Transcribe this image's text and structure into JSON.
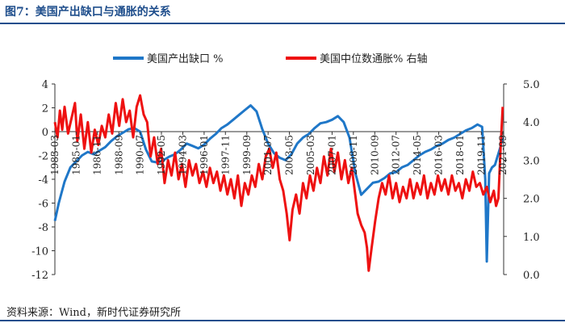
{
  "page": {
    "title": "图7：美国产出缺口与通胀的关系",
    "source": "资料来源：Wind，新时代证券研究所"
  },
  "chart_data": {
    "type": "line",
    "title": "美国产出缺口与通胀的关系",
    "legend": [
      "美国产出缺口 %",
      "美国中位数通胀% 右轴"
    ],
    "legend_position": "top",
    "colors": {
      "gap": "#1f77c8",
      "inflation": "#ee1111",
      "axis": "#333333",
      "title": "#1f4e8c"
    },
    "y_left": {
      "min": -12,
      "max": 4,
      "ticks": [
        "4",
        "2",
        "0",
        "-2",
        "-4",
        "-6",
        "-8",
        "-10",
        "-12"
      ]
    },
    "y_right": {
      "min": 0,
      "max": 5,
      "ticks": [
        "5.0",
        "4.0",
        "3.0",
        "2.0",
        "1.0",
        "0.0"
      ]
    },
    "x_range": [
      1983.17,
      2021.75
    ],
    "x_ticks": [
      {
        "label": "1983-03",
        "year": 1983.17
      },
      {
        "label": "1985-01",
        "year": 1985.0
      },
      {
        "label": "1986-11",
        "year": 1986.83
      },
      {
        "label": "1988-09",
        "year": 1988.67
      },
      {
        "label": "1990-07",
        "year": 1990.5
      },
      {
        "label": "1992-05",
        "year": 1992.33
      },
      {
        "label": "1994-03",
        "year": 1994.17
      },
      {
        "label": "1996-01",
        "year": 1996.0
      },
      {
        "label": "1997-11",
        "year": 1997.83
      },
      {
        "label": "1999-09",
        "year": 1999.67
      },
      {
        "label": "2001-07",
        "year": 2001.5
      },
      {
        "label": "2003-05",
        "year": 2003.33
      },
      {
        "label": "2005-03",
        "year": 2005.17
      },
      {
        "label": "2007-01",
        "year": 2007.0
      },
      {
        "label": "2008-11",
        "year": 2008.83
      },
      {
        "label": "2010-09",
        "year": 2010.67
      },
      {
        "label": "2012-07",
        "year": 2012.5
      },
      {
        "label": "2014-05",
        "year": 2014.33
      },
      {
        "label": "2016-03",
        "year": 2016.17
      },
      {
        "label": "2018-01",
        "year": 2018.0
      },
      {
        "label": "2019-11",
        "year": 2019.83
      },
      {
        "label": "2021-09",
        "year": 2021.67
      }
    ],
    "series": [
      {
        "name": "美国产出缺口 %",
        "axis": "left",
        "points": [
          [
            1983.17,
            -7.5
          ],
          [
            1983.5,
            -6.0
          ],
          [
            1984.0,
            -4.2
          ],
          [
            1984.5,
            -3.0
          ],
          [
            1985.0,
            -2.5
          ],
          [
            1985.5,
            -2.0
          ],
          [
            1986.0,
            -1.7
          ],
          [
            1986.5,
            -1.9
          ],
          [
            1987.0,
            -1.6
          ],
          [
            1987.5,
            -1.3
          ],
          [
            1988.0,
            -0.8
          ],
          [
            1988.5,
            -0.4
          ],
          [
            1989.0,
            -0.1
          ],
          [
            1989.5,
            0.2
          ],
          [
            1990.0,
            0.3
          ],
          [
            1990.5,
            0.0
          ],
          [
            1991.0,
            -1.5
          ],
          [
            1991.5,
            -2.5
          ],
          [
            1992.0,
            -2.6
          ],
          [
            1992.5,
            -2.4
          ],
          [
            1993.0,
            -2.1
          ],
          [
            1993.5,
            -1.9
          ],
          [
            1994.0,
            -1.5
          ],
          [
            1994.5,
            -1.0
          ],
          [
            1995.0,
            -1.2
          ],
          [
            1995.5,
            -1.4
          ],
          [
            1996.0,
            -1.1
          ],
          [
            1996.5,
            -0.6
          ],
          [
            1997.0,
            -0.2
          ],
          [
            1997.5,
            0.3
          ],
          [
            1998.0,
            0.6
          ],
          [
            1998.5,
            1.0
          ],
          [
            1999.0,
            1.4
          ],
          [
            1999.5,
            1.8
          ],
          [
            2000.0,
            2.2
          ],
          [
            2000.5,
            1.7
          ],
          [
            2001.0,
            0.2
          ],
          [
            2001.5,
            -1.0
          ],
          [
            2002.0,
            -1.8
          ],
          [
            2002.5,
            -2.2
          ],
          [
            2003.0,
            -2.4
          ],
          [
            2003.5,
            -1.9
          ],
          [
            2004.0,
            -1.0
          ],
          [
            2004.5,
            -0.5
          ],
          [
            2005.0,
            -0.2
          ],
          [
            2005.5,
            0.3
          ],
          [
            2006.0,
            0.7
          ],
          [
            2006.5,
            0.8
          ],
          [
            2007.0,
            1.0
          ],
          [
            2007.5,
            1.3
          ],
          [
            2008.0,
            0.8
          ],
          [
            2008.5,
            -0.5
          ],
          [
            2009.0,
            -3.5
          ],
          [
            2009.5,
            -5.3
          ],
          [
            2010.0,
            -4.8
          ],
          [
            2010.5,
            -4.3
          ],
          [
            2011.0,
            -4.2
          ],
          [
            2011.5,
            -3.9
          ],
          [
            2012.0,
            -3.5
          ],
          [
            2012.5,
            -3.4
          ],
          [
            2013.0,
            -3.0
          ],
          [
            2013.5,
            -2.8
          ],
          [
            2014.0,
            -2.4
          ],
          [
            2014.5,
            -2.0
          ],
          [
            2015.0,
            -1.7
          ],
          [
            2015.5,
            -1.5
          ],
          [
            2016.0,
            -1.2
          ],
          [
            2016.5,
            -1.0
          ],
          [
            2017.0,
            -0.7
          ],
          [
            2017.5,
            -0.5
          ],
          [
            2018.0,
            -0.2
          ],
          [
            2018.5,
            0.1
          ],
          [
            2019.0,
            0.3
          ],
          [
            2019.5,
            0.6
          ],
          [
            2019.9,
            0.4
          ],
          [
            2020.17,
            -4.0
          ],
          [
            2020.3,
            -10.9
          ],
          [
            2020.5,
            -3.5
          ],
          [
            2020.75,
            -3.0
          ],
          [
            2021.0,
            -2.8
          ],
          [
            2021.25,
            -2.0
          ],
          [
            2021.5,
            -1.2
          ],
          [
            2021.67,
            -0.5
          ]
        ]
      },
      {
        "name": "美国中位数通胀% 右轴",
        "axis": "right",
        "points": [
          [
            1983.17,
            4.0
          ],
          [
            1983.4,
            3.6
          ],
          [
            1983.6,
            4.3
          ],
          [
            1983.8,
            3.8
          ],
          [
            1984.0,
            4.4
          ],
          [
            1984.3,
            3.7
          ],
          [
            1984.6,
            4.1
          ],
          [
            1984.9,
            4.5
          ],
          [
            1985.1,
            3.5
          ],
          [
            1985.4,
            4.2
          ],
          [
            1985.7,
            3.3
          ],
          [
            1986.0,
            4.0
          ],
          [
            1986.3,
            3.2
          ],
          [
            1986.6,
            3.8
          ],
          [
            1986.9,
            3.4
          ],
          [
            1987.2,
            3.9
          ],
          [
            1987.5,
            3.6
          ],
          [
            1987.8,
            4.2
          ],
          [
            1988.1,
            3.7
          ],
          [
            1988.4,
            4.5
          ],
          [
            1988.7,
            3.9
          ],
          [
            1989.0,
            4.6
          ],
          [
            1989.3,
            4.0
          ],
          [
            1989.6,
            4.3
          ],
          [
            1989.9,
            3.6
          ],
          [
            1990.2,
            4.4
          ],
          [
            1990.5,
            4.7
          ],
          [
            1990.8,
            4.2
          ],
          [
            1991.1,
            4.0
          ],
          [
            1991.4,
            3.1
          ],
          [
            1991.7,
            3.6
          ],
          [
            1992.0,
            2.9
          ],
          [
            1992.3,
            3.3
          ],
          [
            1992.6,
            2.4
          ],
          [
            1992.9,
            3.0
          ],
          [
            1993.2,
            2.6
          ],
          [
            1993.5,
            3.2
          ],
          [
            1993.8,
            2.5
          ],
          [
            1994.1,
            2.9
          ],
          [
            1994.4,
            2.3
          ],
          [
            1994.7,
            3.0
          ],
          [
            1995.0,
            2.6
          ],
          [
            1995.3,
            2.9
          ],
          [
            1995.6,
            2.4
          ],
          [
            1995.9,
            2.7
          ],
          [
            1996.2,
            2.3
          ],
          [
            1996.5,
            2.8
          ],
          [
            1996.8,
            2.4
          ],
          [
            1997.1,
            2.7
          ],
          [
            1997.4,
            2.2
          ],
          [
            1997.7,
            2.6
          ],
          [
            1998.0,
            2.1
          ],
          [
            1998.3,
            2.5
          ],
          [
            1998.6,
            2.0
          ],
          [
            1998.9,
            2.6
          ],
          [
            1999.2,
            1.8
          ],
          [
            1999.5,
            2.4
          ],
          [
            1999.8,
            2.1
          ],
          [
            2000.1,
            2.6
          ],
          [
            2000.4,
            2.3
          ],
          [
            2000.7,
            2.9
          ],
          [
            2001.0,
            2.5
          ],
          [
            2001.3,
            3.1
          ],
          [
            2001.6,
            3.3
          ],
          [
            2001.9,
            2.8
          ],
          [
            2002.2,
            3.2
          ],
          [
            2002.5,
            2.5
          ],
          [
            2002.8,
            2.2
          ],
          [
            2003.1,
            1.6
          ],
          [
            2003.35,
            0.9
          ],
          [
            2003.6,
            1.7
          ],
          [
            2003.9,
            2.1
          ],
          [
            2004.2,
            1.6
          ],
          [
            2004.5,
            2.4
          ],
          [
            2004.8,
            2.0
          ],
          [
            2005.1,
            2.6
          ],
          [
            2005.4,
            2.2
          ],
          [
            2005.7,
            2.8
          ],
          [
            2006.0,
            2.4
          ],
          [
            2006.3,
            3.1
          ],
          [
            2006.6,
            2.6
          ],
          [
            2006.9,
            3.3
          ],
          [
            2007.2,
            2.7
          ],
          [
            2007.5,
            3.2
          ],
          [
            2007.8,
            2.5
          ],
          [
            2008.1,
            3.0
          ],
          [
            2008.4,
            2.4
          ],
          [
            2008.7,
            2.8
          ],
          [
            2008.95,
            2.2
          ],
          [
            2009.2,
            1.6
          ],
          [
            2009.5,
            1.3
          ],
          [
            2009.8,
            1.1
          ],
          [
            2010.0,
            0.7
          ],
          [
            2010.15,
            0.1
          ],
          [
            2010.4,
            0.7
          ],
          [
            2010.7,
            1.4
          ],
          [
            2011.0,
            2.0
          ],
          [
            2011.3,
            2.4
          ],
          [
            2011.6,
            2.1
          ],
          [
            2011.9,
            2.6
          ],
          [
            2012.2,
            2.0
          ],
          [
            2012.5,
            2.4
          ],
          [
            2012.8,
            1.9
          ],
          [
            2013.1,
            2.3
          ],
          [
            2013.4,
            2.0
          ],
          [
            2013.7,
            2.5
          ],
          [
            2014.0,
            2.0
          ],
          [
            2014.3,
            2.4
          ],
          [
            2014.6,
            2.1
          ],
          [
            2014.9,
            2.6
          ],
          [
            2015.2,
            2.0
          ],
          [
            2015.5,
            2.4
          ],
          [
            2015.8,
            2.1
          ],
          [
            2016.1,
            2.6
          ],
          [
            2016.4,
            2.2
          ],
          [
            2016.7,
            2.5
          ],
          [
            2017.0,
            2.1
          ],
          [
            2017.3,
            2.6
          ],
          [
            2017.6,
            2.2
          ],
          [
            2017.9,
            2.4
          ],
          [
            2018.2,
            2.0
          ],
          [
            2018.5,
            2.5
          ],
          [
            2018.8,
            2.2
          ],
          [
            2019.1,
            2.7
          ],
          [
            2019.4,
            2.3
          ],
          [
            2019.7,
            2.4
          ],
          [
            2020.0,
            2.1
          ],
          [
            2020.3,
            2.3
          ],
          [
            2020.6,
            1.9
          ],
          [
            2020.9,
            2.2
          ],
          [
            2021.1,
            1.8
          ],
          [
            2021.3,
            2.0
          ],
          [
            2021.5,
            3.4
          ],
          [
            2021.67,
            4.4
          ]
        ]
      }
    ]
  }
}
